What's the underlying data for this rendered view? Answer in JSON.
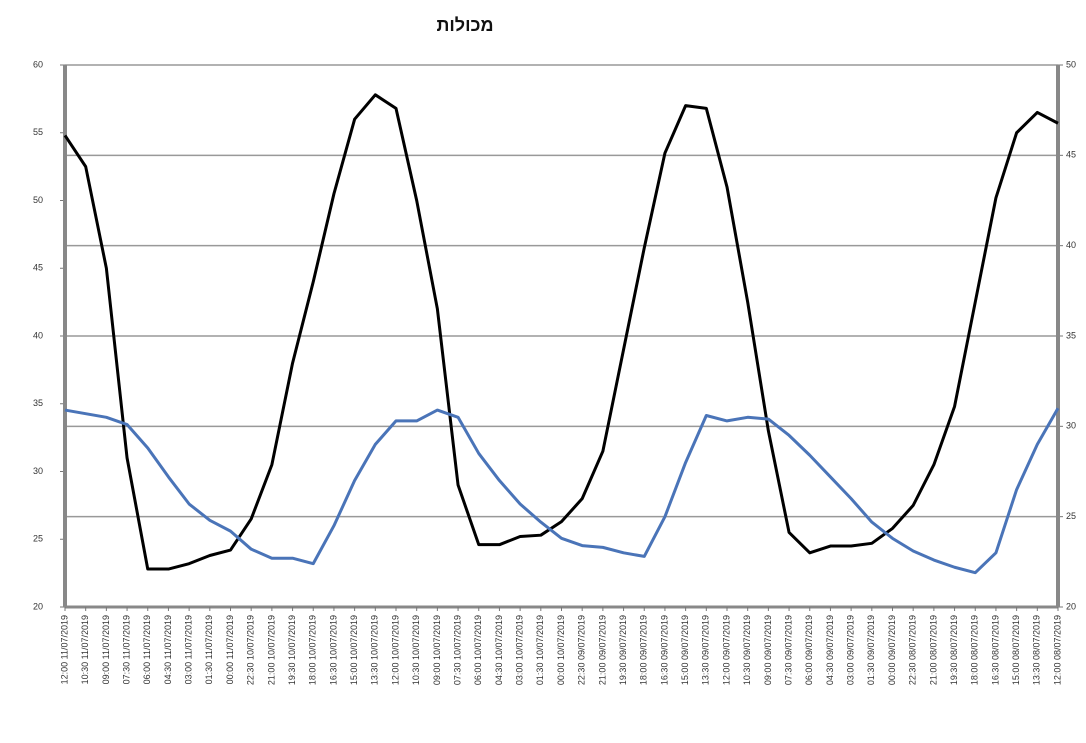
{
  "chart_data": {
    "type": "line",
    "title": "מכולות",
    "categories": [
      "12:00 11/07/2019",
      "10:30 11/07/2019",
      "09:00 11/07/2019",
      "07:30 11/07/2019",
      "06:00 11/07/2019",
      "04:30 11/07/2019",
      "03:00 11/07/2019",
      "01:30 11/07/2019",
      "00:00 11/07/2019",
      "22:30 10/07/2019",
      "21:00 10/07/2019",
      "19:30 10/07/2019",
      "18:00 10/07/2019",
      "16:30 10/07/2019",
      "15:00 10/07/2019",
      "13:30 10/07/2019",
      "12:00 10/07/2019",
      "10:30 10/07/2019",
      "09:00 10/07/2019",
      "07:30 10/07/2019",
      "06:00 10/07/2019",
      "04:30 10/07/2019",
      "03:00 10/07/2019",
      "01:30 10/07/2019",
      "00:00 10/07/2019",
      "22:30 09/07/2019",
      "21:00 09/07/2019",
      "19:30 09/07/2019",
      "18:00 09/07/2019",
      "16:30 09/07/2019",
      "15:00 09/07/2019",
      "13:30 09/07/2019",
      "12:00 09/07/2019",
      "10:30 09/07/2019",
      "09:00 09/07/2019",
      "07:30 09/07/2019",
      "06:00 09/07/2019",
      "04:30 09/07/2019",
      "03:00 09/07/2019",
      "01:30 09/07/2019",
      "00:00 09/07/2019",
      "22:30 08/07/2019",
      "21:00 08/07/2019",
      "19:30 08/07/2019",
      "18:00 08/07/2019",
      "16:30 08/07/2019",
      "15:00 08/07/2019",
      "13:30 08/07/2019",
      "12:00 08/07/2019"
    ],
    "series": [
      {
        "color": "#000000",
        "values": [
          54.8,
          52.5,
          45,
          31,
          22.8,
          22.8,
          23.2,
          23.8,
          24.2,
          26.5,
          30.5,
          38,
          44,
          50.5,
          56,
          57.8,
          56.8,
          50,
          42,
          29,
          24.6,
          24.6,
          25.2,
          25.3,
          26.3,
          28,
          31.5,
          39,
          46.5,
          53.5,
          57,
          56.8,
          51,
          42.5,
          33,
          25.5,
          24,
          24.5,
          24.5,
          24.7,
          25.8,
          27.5,
          30.5,
          34.8,
          42.5,
          50.2,
          55,
          56.5,
          55.7
        ]
      },
      {
        "color": "#4a74b8",
        "axis": "y2",
        "values": [
          30.9,
          30.7,
          30.5,
          30.1,
          28.8,
          27.2,
          25.7,
          24.8,
          24.2,
          23.2,
          22.7,
          22.7,
          22.4,
          24.5,
          27,
          29,
          30.3,
          30.3,
          30.9,
          30.5,
          28.5,
          27,
          25.7,
          24.7,
          23.8,
          23.4,
          23.3,
          23,
          22.8,
          25,
          28,
          30.6,
          30.3,
          30.5,
          30.4,
          29.5,
          28.4,
          27.2,
          26,
          24.7,
          23.8,
          23.1,
          22.6,
          22.2,
          21.9,
          23,
          26.5,
          29,
          31
        ]
      }
    ],
    "ylim": [
      20,
      60
    ],
    "yticks": [
      20,
      25,
      30,
      35,
      40,
      45,
      50,
      55,
      60
    ],
    "y2lim": [
      20,
      50
    ],
    "y2ticks": [
      20,
      25,
      30,
      35,
      40,
      45,
      50
    ],
    "grid": "y2"
  }
}
